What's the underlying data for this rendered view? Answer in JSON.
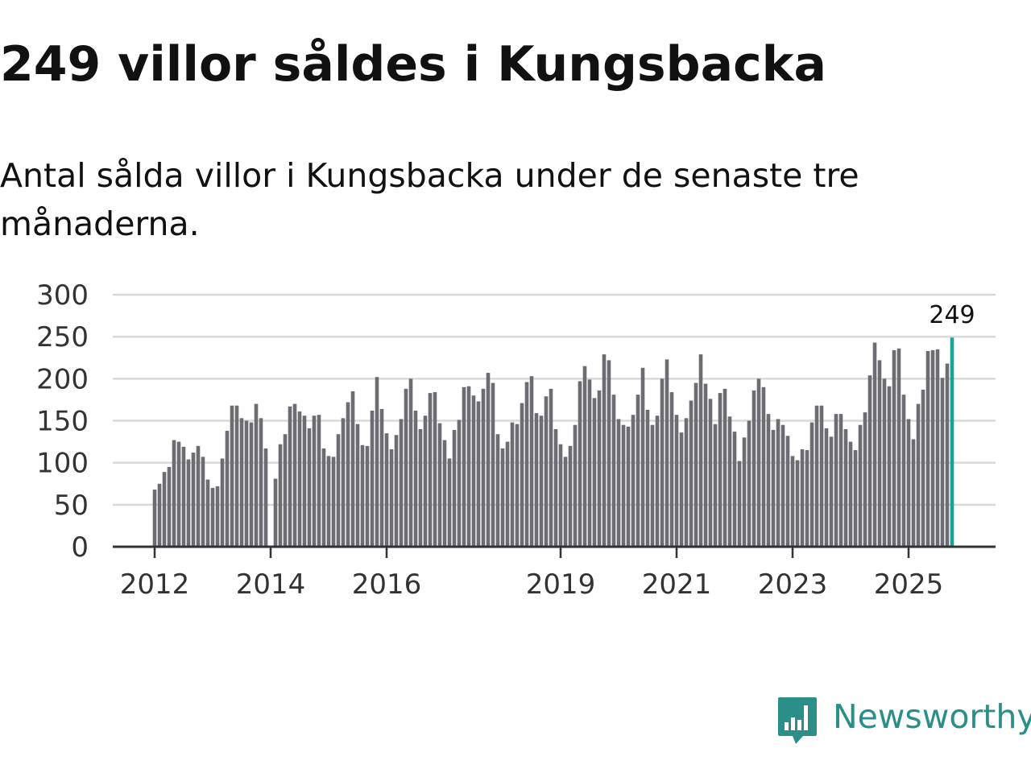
{
  "title": "249 villor såldes i Kungsbacka",
  "subtitle": "Antal sålda villor i Kungsbacka under de senaste tre månaderna.",
  "brand": {
    "name": "Newsworthy",
    "color": "#2a8f88",
    "icon": "newsworthy-logo-icon"
  },
  "colors": {
    "bar": "#6d6c72",
    "highlight": "#19a394",
    "grid": "#d9d9d9",
    "axis": "#333333"
  },
  "chart_data": {
    "type": "bar",
    "title": "249 villor såldes i Kungsbacka",
    "xlabel": "",
    "ylabel": "",
    "ylim": [
      0,
      300
    ],
    "yticks": [
      0,
      50,
      100,
      150,
      200,
      250,
      300
    ],
    "xticks": [
      {
        "label": "2012",
        "index": 0
      },
      {
        "label": "2014",
        "index": 24
      },
      {
        "label": "2016",
        "index": 48
      },
      {
        "label": "2019",
        "index": 84
      },
      {
        "label": "2021",
        "index": 108
      },
      {
        "label": "2023",
        "index": 132
      },
      {
        "label": "2025",
        "index": 156
      }
    ],
    "grid": true,
    "legend": "none",
    "highlight": {
      "index": 165,
      "label": "249"
    },
    "values": [
      68,
      75,
      89,
      95,
      127,
      125,
      119,
      104,
      112,
      120,
      107,
      80,
      70,
      72,
      105,
      138,
      168,
      168,
      153,
      150,
      148,
      170,
      153,
      117,
      0,
      81,
      122,
      134,
      167,
      170,
      161,
      156,
      141,
      156,
      157,
      117,
      108,
      107,
      134,
      153,
      172,
      185,
      146,
      121,
      120,
      162,
      202,
      164,
      135,
      116,
      133,
      152,
      188,
      200,
      162,
      140,
      156,
      183,
      184,
      147,
      127,
      105,
      139,
      151,
      190,
      191,
      180,
      173,
      188,
      207,
      195,
      134,
      117,
      125,
      148,
      146,
      171,
      196,
      203,
      159,
      156,
      179,
      188,
      140,
      122,
      107,
      120,
      145,
      197,
      215,
      199,
      177,
      186,
      229,
      222,
      181,
      152,
      145,
      143,
      157,
      181,
      213,
      163,
      145,
      156,
      200,
      223,
      184,
      157,
      136,
      153,
      174,
      195,
      229,
      194,
      176,
      146,
      183,
      188,
      155,
      137,
      102,
      130,
      150,
      186,
      200,
      190,
      158,
      139,
      152,
      145,
      132,
      108,
      103,
      116,
      115,
      148,
      168,
      168,
      141,
      131,
      158,
      158,
      140,
      125,
      115,
      145,
      160,
      204,
      243,
      222,
      200,
      191,
      234,
      236,
      181,
      152,
      128,
      170,
      187,
      233,
      234,
      235,
      201,
      218,
      249
    ]
  }
}
